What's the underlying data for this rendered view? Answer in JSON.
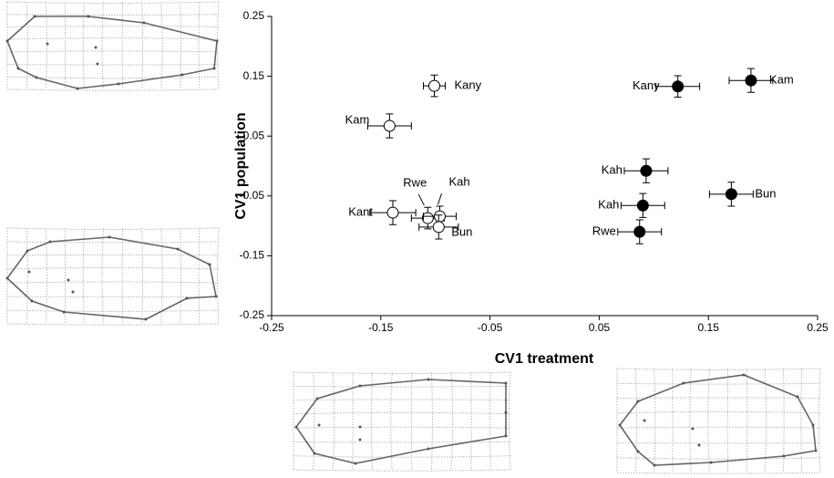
{
  "chart_data": {
    "type": "scatter",
    "x_label": "CV1 treatment",
    "y_label": "CV1 population",
    "xlim": [
      -0.25,
      0.25
    ],
    "ylim": [
      -0.25,
      0.25
    ],
    "xticks": [
      -0.25,
      -0.15,
      -0.05,
      0.05,
      0.15,
      0.25
    ],
    "yticks": [
      -0.25,
      -0.15,
      -0.05,
      0.05,
      0.15,
      0.25
    ],
    "series": [
      {
        "color": "#000000",
        "fill": "#ffffff",
        "labels": [
          "Kany",
          "Kam",
          "Kant",
          "Rwe",
          "Kah",
          "Bun"
        ],
        "x": [
          -0.101,
          -0.142,
          -0.139,
          -0.107,
          -0.096,
          -0.097
        ],
        "y": [
          0.134,
          0.067,
          -0.078,
          -0.087,
          -0.084,
          -0.102
        ],
        "xerr": [
          0.01,
          0.02,
          0.021,
          0.015,
          0.015,
          0.018
        ],
        "yerr": [
          0.018,
          0.02,
          0.02,
          0.018,
          0.017,
          0.02
        ]
      },
      {
        "color": "#000000",
        "fill": "#000000",
        "labels": [
          "Kany",
          "Kam",
          "Kah",
          "Kah",
          "Bun",
          "Rwe"
        ],
        "x": [
          0.122,
          0.189,
          0.093,
          0.09,
          0.171,
          0.087
        ],
        "y": [
          0.133,
          0.143,
          -0.008,
          -0.066,
          -0.047,
          -0.11
        ],
        "xerr": [
          0.02,
          0.02,
          0.02,
          0.02,
          0.02,
          0.02
        ],
        "yerr": [
          0.018,
          0.02,
          0.02,
          0.02,
          0.02,
          0.02
        ]
      }
    ]
  }
}
